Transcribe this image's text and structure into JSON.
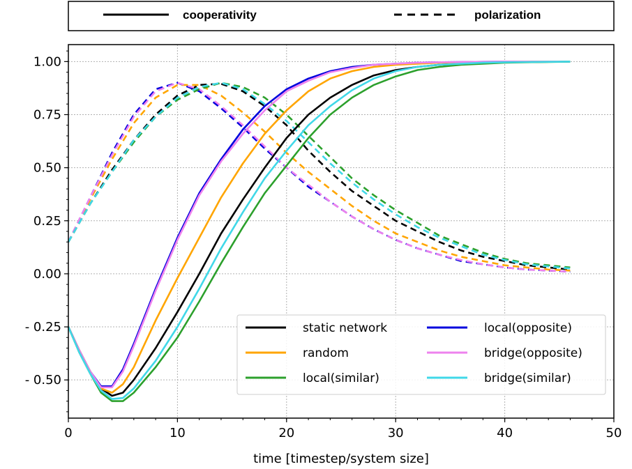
{
  "chart_data": {
    "type": "line",
    "xlabel": "time [timestep/system size]",
    "ylabel": "",
    "xlim": [
      0,
      50
    ],
    "ylim": [
      -0.68,
      1.08
    ],
    "xticks": [
      0,
      10,
      20,
      30,
      40,
      50
    ],
    "yticks": [
      -0.5,
      -0.25,
      0.0,
      0.25,
      0.5,
      0.75,
      1.0
    ],
    "ytick_labels": [
      "- 0.50",
      "- 0.25",
      "0.00",
      "0.25",
      "0.50",
      "0.75",
      "1.00"
    ],
    "grid": true,
    "style_legend": {
      "placement": "top",
      "entries": [
        {
          "label": "cooperativity",
          "style": "solid"
        },
        {
          "label": "polarization",
          "style": "dashed"
        }
      ]
    },
    "color_legend": {
      "placement": "lower-right",
      "entries": [
        {
          "label": "static network",
          "color": "#000000"
        },
        {
          "label": "local(opposite)",
          "color": "#0000dd"
        },
        {
          "label": "random",
          "color": "#ffa500"
        },
        {
          "label": "bridge(opposite)",
          "color": "#ee82ee"
        },
        {
          "label": "local(similar)",
          "color": "#2ca02c"
        },
        {
          "label": "bridge(similar)",
          "color": "#40d8e8"
        }
      ]
    },
    "series": [
      {
        "name": "static network",
        "color": "#000000",
        "metric": "cooperativity",
        "x": [
          0,
          1,
          2,
          3,
          4,
          5,
          6,
          8,
          10,
          12,
          14,
          16,
          18,
          20,
          22,
          24,
          26,
          28,
          30,
          32,
          34,
          36,
          38,
          40,
          42,
          44,
          46
        ],
        "y": [
          -0.25,
          -0.36,
          -0.46,
          -0.54,
          -0.575,
          -0.56,
          -0.5,
          -0.35,
          -0.18,
          0.0,
          0.19,
          0.35,
          0.5,
          0.64,
          0.75,
          0.83,
          0.89,
          0.935,
          0.96,
          0.975,
          0.985,
          0.99,
          0.995,
          0.997,
          0.998,
          0.999,
          1.0
        ]
      },
      {
        "name": "local(opposite)",
        "color": "#0000dd",
        "metric": "cooperativity",
        "x": [
          0,
          1,
          2,
          3,
          4,
          5,
          6,
          8,
          10,
          12,
          14,
          16,
          18,
          20,
          22,
          24,
          26,
          28,
          30,
          32,
          34,
          36,
          38,
          40,
          42,
          44,
          46
        ],
        "y": [
          -0.25,
          -0.36,
          -0.46,
          -0.53,
          -0.53,
          -0.45,
          -0.33,
          -0.07,
          0.17,
          0.38,
          0.54,
          0.68,
          0.79,
          0.87,
          0.92,
          0.955,
          0.975,
          0.985,
          0.99,
          0.995,
          0.997,
          0.998,
          0.999,
          1.0,
          1.0,
          1.0,
          1.0
        ]
      },
      {
        "name": "random",
        "color": "#ffa500",
        "metric": "cooperativity",
        "x": [
          0,
          1,
          2,
          3,
          4,
          5,
          6,
          8,
          10,
          12,
          14,
          16,
          18,
          20,
          22,
          24,
          26,
          28,
          30,
          32,
          34,
          36,
          38,
          40,
          42,
          44,
          46
        ],
        "y": [
          -0.25,
          -0.36,
          -0.46,
          -0.54,
          -0.56,
          -0.52,
          -0.44,
          -0.22,
          -0.02,
          0.17,
          0.36,
          0.52,
          0.66,
          0.77,
          0.86,
          0.92,
          0.955,
          0.975,
          0.985,
          0.99,
          0.995,
          0.997,
          0.998,
          0.999,
          1.0,
          1.0,
          1.0
        ]
      },
      {
        "name": "bridge(opposite)",
        "color": "#ee82ee",
        "metric": "cooperativity",
        "x": [
          0,
          1,
          2,
          3,
          4,
          5,
          6,
          8,
          10,
          12,
          14,
          16,
          18,
          20,
          22,
          24,
          26,
          28,
          30,
          32,
          34,
          36,
          38,
          40,
          42,
          44,
          46
        ],
        "y": [
          -0.25,
          -0.36,
          -0.46,
          -0.535,
          -0.535,
          -0.46,
          -0.34,
          -0.08,
          0.16,
          0.37,
          0.53,
          0.66,
          0.77,
          0.86,
          0.91,
          0.95,
          0.97,
          0.985,
          0.99,
          0.995,
          0.997,
          0.998,
          0.999,
          1.0,
          1.0,
          1.0,
          1.0
        ]
      },
      {
        "name": "local(similar)",
        "color": "#2ca02c",
        "metric": "cooperativity",
        "x": [
          0,
          1,
          2,
          3,
          4,
          5,
          6,
          8,
          10,
          12,
          14,
          16,
          18,
          20,
          22,
          24,
          26,
          28,
          30,
          32,
          34,
          36,
          38,
          40,
          42,
          44,
          46
        ],
        "y": [
          -0.25,
          -0.37,
          -0.47,
          -0.56,
          -0.6,
          -0.6,
          -0.56,
          -0.44,
          -0.3,
          -0.13,
          0.05,
          0.22,
          0.38,
          0.51,
          0.64,
          0.75,
          0.83,
          0.89,
          0.93,
          0.96,
          0.975,
          0.985,
          0.99,
          0.995,
          0.997,
          0.998,
          1.0
        ]
      },
      {
        "name": "bridge(similar)",
        "color": "#40d8e8",
        "metric": "cooperativity",
        "x": [
          0,
          1,
          2,
          3,
          4,
          5,
          6,
          8,
          10,
          12,
          14,
          16,
          18,
          20,
          22,
          24,
          26,
          28,
          30,
          32,
          34,
          36,
          38,
          40,
          42,
          44,
          46
        ],
        "y": [
          -0.25,
          -0.37,
          -0.47,
          -0.55,
          -0.59,
          -0.585,
          -0.54,
          -0.41,
          -0.25,
          -0.07,
          0.12,
          0.29,
          0.45,
          0.58,
          0.7,
          0.79,
          0.865,
          0.92,
          0.955,
          0.975,
          0.985,
          0.99,
          0.995,
          0.997,
          0.998,
          0.999,
          1.0
        ]
      },
      {
        "name": "static network",
        "color": "#000000",
        "metric": "polarization",
        "x": [
          0,
          2,
          4,
          6,
          8,
          10,
          12,
          14,
          16,
          18,
          20,
          22,
          24,
          26,
          28,
          30,
          32,
          34,
          36,
          38,
          40,
          42,
          44,
          46
        ],
        "y": [
          0.15,
          0.33,
          0.49,
          0.63,
          0.75,
          0.84,
          0.89,
          0.895,
          0.86,
          0.79,
          0.7,
          0.58,
          0.48,
          0.39,
          0.32,
          0.25,
          0.2,
          0.15,
          0.11,
          0.08,
          0.06,
          0.04,
          0.03,
          0.02
        ]
      },
      {
        "name": "local(opposite)",
        "color": "#0000dd",
        "metric": "polarization",
        "x": [
          0,
          2,
          4,
          6,
          8,
          10,
          12,
          14,
          16,
          18,
          20,
          22,
          24,
          26,
          28,
          30,
          32,
          34,
          36,
          38,
          40,
          42,
          44,
          46
        ],
        "y": [
          0.15,
          0.36,
          0.57,
          0.75,
          0.87,
          0.9,
          0.86,
          0.78,
          0.69,
          0.59,
          0.5,
          0.41,
          0.34,
          0.27,
          0.21,
          0.16,
          0.12,
          0.09,
          0.06,
          0.045,
          0.03,
          0.02,
          0.015,
          0.01
        ]
      },
      {
        "name": "random",
        "color": "#ffa500",
        "metric": "polarization",
        "x": [
          0,
          2,
          4,
          6,
          8,
          10,
          12,
          14,
          16,
          18,
          20,
          22,
          24,
          26,
          28,
          30,
          32,
          34,
          36,
          38,
          40,
          42,
          44,
          46
        ],
        "y": [
          0.15,
          0.35,
          0.54,
          0.71,
          0.83,
          0.89,
          0.89,
          0.84,
          0.76,
          0.67,
          0.57,
          0.48,
          0.4,
          0.32,
          0.25,
          0.19,
          0.15,
          0.11,
          0.08,
          0.06,
          0.04,
          0.03,
          0.02,
          0.015
        ]
      },
      {
        "name": "bridge(opposite)",
        "color": "#ee82ee",
        "metric": "polarization",
        "x": [
          0,
          2,
          4,
          6,
          8,
          10,
          12,
          14,
          16,
          18,
          20,
          22,
          24,
          26,
          28,
          30,
          32,
          34,
          36,
          38,
          40,
          42,
          44,
          46
        ],
        "y": [
          0.15,
          0.36,
          0.56,
          0.74,
          0.86,
          0.9,
          0.87,
          0.79,
          0.7,
          0.6,
          0.5,
          0.42,
          0.34,
          0.27,
          0.21,
          0.16,
          0.12,
          0.09,
          0.065,
          0.045,
          0.03,
          0.02,
          0.015,
          0.01
        ]
      },
      {
        "name": "local(similar)",
        "color": "#2ca02c",
        "metric": "polarization",
        "x": [
          0,
          2,
          4,
          6,
          8,
          10,
          12,
          14,
          16,
          18,
          20,
          22,
          24,
          26,
          28,
          30,
          32,
          34,
          36,
          38,
          40,
          42,
          44,
          46
        ],
        "y": [
          0.15,
          0.33,
          0.48,
          0.62,
          0.74,
          0.82,
          0.87,
          0.9,
          0.88,
          0.83,
          0.75,
          0.65,
          0.55,
          0.45,
          0.37,
          0.3,
          0.24,
          0.18,
          0.14,
          0.1,
          0.07,
          0.05,
          0.04,
          0.03
        ]
      },
      {
        "name": "bridge(similar)",
        "color": "#40d8e8",
        "metric": "polarization",
        "x": [
          0,
          2,
          4,
          6,
          8,
          10,
          12,
          14,
          16,
          18,
          20,
          22,
          24,
          26,
          28,
          30,
          32,
          34,
          36,
          38,
          40,
          42,
          44,
          46
        ],
        "y": [
          0.15,
          0.33,
          0.48,
          0.63,
          0.74,
          0.83,
          0.88,
          0.9,
          0.87,
          0.8,
          0.72,
          0.62,
          0.52,
          0.43,
          0.35,
          0.28,
          0.22,
          0.17,
          0.13,
          0.09,
          0.065,
          0.045,
          0.035,
          0.025
        ]
      }
    ]
  }
}
